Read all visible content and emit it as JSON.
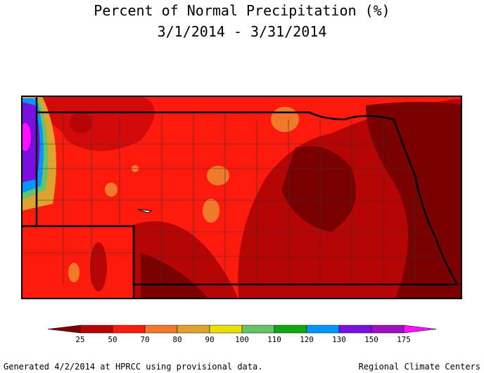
{
  "header": {
    "title": "Percent of Normal Precipitation (%)",
    "subtitle": "3/1/2014 - 3/31/2014"
  },
  "legend": {
    "breaks": [
      25,
      50,
      70,
      80,
      90,
      100,
      110,
      120,
      130,
      150,
      175
    ],
    "colors": [
      "#7a0000",
      "#b50505",
      "#ff1a0e",
      "#f07a2a",
      "#e0a22e",
      "#e8e000",
      "#66c466",
      "#10a810",
      "#0098ff",
      "#7a10e0",
      "#a010c0",
      "#ff10ff"
    ]
  },
  "footer": {
    "left": "Generated 4/2/2014 at HPRCC using provisional data.",
    "right": "Regional Climate Centers"
  }
}
